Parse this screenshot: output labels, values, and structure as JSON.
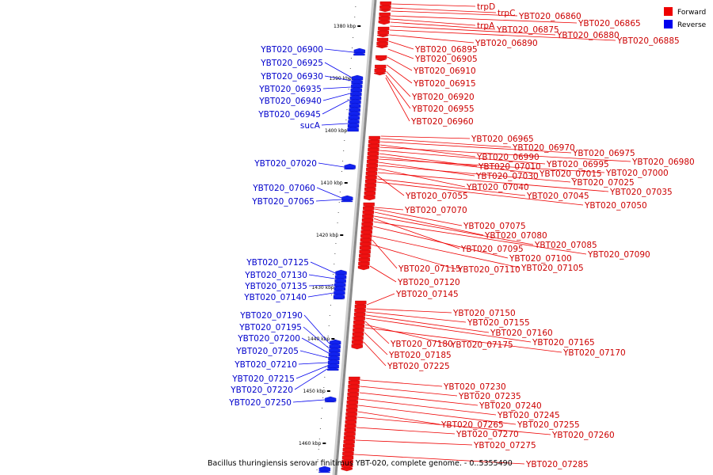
{
  "caption": "Bacillus thuringiensis serovar finitimus YBT-020, complete genome. - 0..5355490",
  "legend": [
    {
      "label": "Forward",
      "color": "#ee0000"
    },
    {
      "label": "Reverse",
      "color": "#0000ee"
    }
  ],
  "axis_ticks": [
    "1380 kbp",
    "1390 kbp",
    "1400 kbp",
    "1410 kbp",
    "1420 kbp",
    "1430 kbp",
    "1440 kbp",
    "1450 kbp",
    "1460 kbp"
  ],
  "forward_genes": [
    "trpD",
    "trpC",
    "YBT020_06860",
    "YBT020_06865",
    "trpA",
    "YBT020_06875",
    "YBT020_06880",
    "YBT020_06885",
    "YBT020_06890",
    "YBT020_06895",
    "YBT020_06905",
    "YBT020_06910",
    "YBT020_06915",
    "YBT020_06920",
    "YBT020_06955",
    "YBT020_06960",
    "YBT020_06965",
    "YBT020_06970",
    "YBT020_06975",
    "YBT020_06990",
    "YBT020_06980",
    "YBT020_06995",
    "YBT020_07010",
    "YBT020_07015",
    "YBT020_07000",
    "YBT020_07030",
    "YBT020_07025",
    "YBT020_07040",
    "YBT020_07035",
    "YBT020_07055",
    "YBT020_07045",
    "YBT020_07050",
    "YBT020_07070",
    "YBT020_07075",
    "YBT020_07080",
    "YBT020_07085",
    "YBT020_07095",
    "YBT020_07090",
    "YBT020_07100",
    "YBT020_07105",
    "YBT020_07115",
    "YBT020_07110",
    "YBT020_07120",
    "YBT020_07145",
    "YBT020_07150",
    "YBT020_07155",
    "YBT020_07160",
    "YBT020_07165",
    "YBT020_07180",
    "YBT020_07175",
    "YBT020_07170",
    "YBT020_07185",
    "YBT020_07225",
    "YBT020_07230",
    "YBT020_07235",
    "YBT020_07240",
    "YBT020_07245",
    "YBT020_07255",
    "YBT020_07265",
    "YBT020_07260",
    "YBT020_07270",
    "YBT020_07275",
    "YBT020_07285"
  ],
  "reverse_genes": [
    "YBT020_06900",
    "YBT020_06925",
    "YBT020_06930",
    "YBT020_06935",
    "YBT020_06940",
    "YBT020_06945",
    "sucA",
    "YBT020_07020",
    "YBT020_07060",
    "YBT020_07065",
    "YBT020_07125",
    "YBT020_07130",
    "YBT020_07135",
    "YBT020_07140",
    "YBT020_07190",
    "YBT020_07195",
    "YBT020_07200",
    "YBT020_07205",
    "YBT020_07210",
    "YBT020_07215",
    "YBT020_07220",
    "YBT020_07250"
  ]
}
